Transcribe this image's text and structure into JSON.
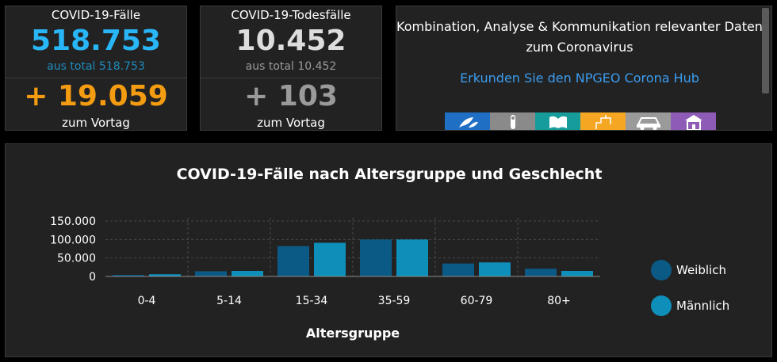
{
  "cases": {
    "title": "COVID-19-Fälle",
    "value": "518.753",
    "subtitle": "aus total 518.753",
    "delta": "+ 19.059",
    "delta_label": "zum Vortag",
    "value_color": "#29b6f6",
    "subtitle_color": "#1f8bbd",
    "delta_color": "#f39c12"
  },
  "deaths": {
    "title": "COVID-19-Todesfälle",
    "value": "10.452",
    "subtitle": "aus total 10.452",
    "delta": "+ 103",
    "delta_label": "zum Vortag",
    "value_color": "#dddddd",
    "subtitle_color": "#9a9a9a",
    "delta_color": "#9a9a9a"
  },
  "hub": {
    "text": "Kombination, Analyse & Kommunikation relevanter Daten zum Coronavirus",
    "link": "Erkunden Sie den NPGEO Corona Hub",
    "tiles": [
      {
        "icon": "leaf-icon",
        "color": "#1f6fc5"
      },
      {
        "icon": "pin-icon",
        "color": "#8a8a8a"
      },
      {
        "icon": "map-icon",
        "color": "#179c9c"
      },
      {
        "icon": "region-icon",
        "color": "#f5a623"
      },
      {
        "icon": "car-icon",
        "color": "#9a9a9a"
      },
      {
        "icon": "building-icon",
        "color": "#8e5bb6"
      }
    ]
  },
  "chart_data": {
    "type": "bar",
    "title": "COVID-19-Fälle nach Altersgruppe und Geschlecht",
    "xlabel": "Altersgruppe",
    "categories": [
      "0-4",
      "5-14",
      "15-34",
      "35-59",
      "60-79",
      "80+"
    ],
    "series": [
      {
        "name": "Weiblich",
        "color": "#0b5a85",
        "values": [
          4000,
          14000,
          82000,
          100000,
          35000,
          21000
        ]
      },
      {
        "name": "Männlich",
        "color": "#0e8fba",
        "values": [
          6000,
          15000,
          91000,
          100000,
          38000,
          15000
        ]
      }
    ],
    "yticks": [
      0,
      50000,
      100000,
      150000
    ],
    "ytick_labels": [
      "0",
      "50.000",
      "100.000",
      "150.000"
    ],
    "ylim": [
      0,
      150000
    ],
    "grid": true,
    "legend": "right"
  }
}
